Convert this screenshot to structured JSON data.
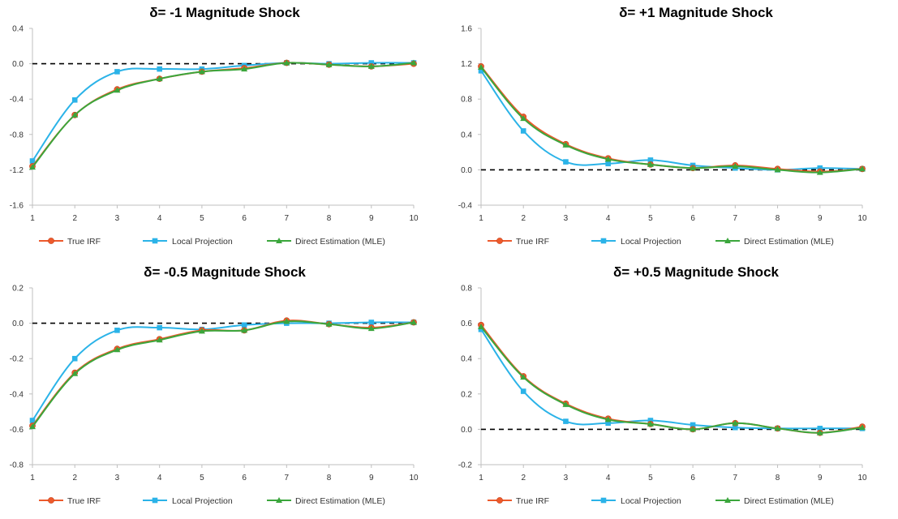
{
  "colors": {
    "true_irf": "#ED5A2C",
    "local_projection": "#2BB3E8",
    "direct_estimation": "#3BA63C",
    "zero_line": "#000000",
    "axis": "#BFBFBF"
  },
  "chart_data": [
    {
      "type": "line",
      "title": "δ= -1 Magnitude Shock",
      "x": [
        1,
        2,
        3,
        4,
        5,
        6,
        7,
        8,
        9,
        10
      ],
      "ylim": [
        -1.6,
        0.4
      ],
      "yticks": [
        -1.6,
        -1.2,
        -0.8,
        -0.4,
        0.0,
        0.4
      ],
      "ytick_labels": [
        "-1.6",
        "-1.2",
        "-0.8",
        "-0.4",
        "0.0",
        "0.4"
      ],
      "xtick_labels": [
        "1",
        "2",
        "3",
        "4",
        "5",
        "6",
        "7",
        "8",
        "9",
        "10"
      ],
      "zero_line": 0,
      "legend_position": "bottom",
      "series": [
        {
          "name": "True IRF",
          "marker": "circle",
          "color_key": "true_irf",
          "values": [
            -1.16,
            -0.58,
            -0.29,
            -0.17,
            -0.09,
            -0.05,
            0.01,
            -0.01,
            -0.03,
            0.0
          ]
        },
        {
          "name": "Local Projection",
          "marker": "square",
          "color_key": "local_projection",
          "values": [
            -1.1,
            -0.41,
            -0.09,
            -0.06,
            -0.06,
            -0.02,
            0.01,
            0.0,
            0.01,
            0.01
          ]
        },
        {
          "name": "Direct Estimation (MLE)",
          "marker": "triangle",
          "color_key": "direct_estimation",
          "values": [
            -1.17,
            -0.58,
            -0.3,
            -0.17,
            -0.09,
            -0.06,
            0.01,
            -0.01,
            -0.03,
            0.01
          ]
        }
      ]
    },
    {
      "type": "line",
      "title": "δ= +1 Magnitude Shock",
      "x": [
        1,
        2,
        3,
        4,
        5,
        6,
        7,
        8,
        9,
        10
      ],
      "ylim": [
        -0.4,
        1.6
      ],
      "yticks": [
        -0.4,
        0.0,
        0.4,
        0.8,
        1.2,
        1.6
      ],
      "ytick_labels": [
        "-0.4",
        "0.0",
        "0.4",
        "0.8",
        "1.2",
        "1.6"
      ],
      "xtick_labels": [
        "1",
        "2",
        "3",
        "4",
        "5",
        "6",
        "7",
        "8",
        "9",
        "10"
      ],
      "zero_line": 0,
      "legend_position": "bottom",
      "series": [
        {
          "name": "True IRF",
          "marker": "circle",
          "color_key": "true_irf",
          "values": [
            1.17,
            0.6,
            0.29,
            0.13,
            0.06,
            0.02,
            0.05,
            0.01,
            -0.02,
            0.01
          ]
        },
        {
          "name": "Local Projection",
          "marker": "square",
          "color_key": "local_projection",
          "values": [
            1.12,
            0.44,
            0.09,
            0.07,
            0.11,
            0.05,
            0.02,
            0.0,
            0.02,
            0.01
          ]
        },
        {
          "name": "Direct Estimation (MLE)",
          "marker": "triangle",
          "color_key": "direct_estimation",
          "values": [
            1.16,
            0.58,
            0.28,
            0.12,
            0.06,
            0.02,
            0.04,
            0.0,
            -0.03,
            0.01
          ]
        }
      ]
    },
    {
      "type": "line",
      "title": "δ= -0.5 Magnitude Shock",
      "x": [
        1,
        2,
        3,
        4,
        5,
        6,
        7,
        8,
        9,
        10
      ],
      "ylim": [
        -0.8,
        0.2
      ],
      "yticks": [
        -0.8,
        -0.6,
        -0.4,
        -0.2,
        0.0,
        0.2
      ],
      "ytick_labels": [
        "-0.8",
        "-0.6",
        "-0.4",
        "-0.2",
        "0.0",
        "0.2"
      ],
      "xtick_labels": [
        "1",
        "2",
        "3",
        "4",
        "5",
        "6",
        "7",
        "8",
        "9",
        "10"
      ],
      "zero_line": 0,
      "legend_position": "bottom",
      "series": [
        {
          "name": "True IRF",
          "marker": "circle",
          "color_key": "true_irf",
          "values": [
            -0.58,
            -0.28,
            -0.145,
            -0.09,
            -0.04,
            -0.04,
            0.015,
            -0.005,
            -0.025,
            0.005
          ]
        },
        {
          "name": "Local Projection",
          "marker": "square",
          "color_key": "local_projection",
          "values": [
            -0.55,
            -0.2,
            -0.04,
            -0.025,
            -0.035,
            -0.01,
            0.0,
            0.0,
            0.005,
            0.005
          ]
        },
        {
          "name": "Direct Estimation (MLE)",
          "marker": "triangle",
          "color_key": "direct_estimation",
          "values": [
            -0.585,
            -0.285,
            -0.15,
            -0.095,
            -0.045,
            -0.04,
            0.01,
            -0.005,
            -0.03,
            0.005
          ]
        }
      ]
    },
    {
      "type": "line",
      "title": "δ= +0.5 Magnitude Shock",
      "x": [
        1,
        2,
        3,
        4,
        5,
        6,
        7,
        8,
        9,
        10
      ],
      "ylim": [
        -0.2,
        0.8
      ],
      "yticks": [
        -0.2,
        0.0,
        0.2,
        0.4,
        0.6,
        0.8
      ],
      "ytick_labels": [
        "-0.2",
        "0.0",
        "0.2",
        "0.4",
        "0.6",
        "0.8"
      ],
      "xtick_labels": [
        "1",
        "2",
        "3",
        "4",
        "5",
        "6",
        "7",
        "8",
        "9",
        "10"
      ],
      "zero_line": 0,
      "legend_position": "bottom",
      "series": [
        {
          "name": "True IRF",
          "marker": "circle",
          "color_key": "true_irf",
          "values": [
            0.59,
            0.3,
            0.145,
            0.06,
            0.03,
            0.0,
            0.035,
            0.005,
            -0.02,
            0.015
          ]
        },
        {
          "name": "Local Projection",
          "marker": "square",
          "color_key": "local_projection",
          "values": [
            0.565,
            0.215,
            0.045,
            0.035,
            0.05,
            0.025,
            0.01,
            0.005,
            0.005,
            0.005
          ]
        },
        {
          "name": "Direct Estimation (MLE)",
          "marker": "triangle",
          "color_key": "direct_estimation",
          "values": [
            0.58,
            0.295,
            0.14,
            0.055,
            0.03,
            0.0,
            0.035,
            0.005,
            -0.02,
            0.01
          ]
        }
      ]
    }
  ]
}
